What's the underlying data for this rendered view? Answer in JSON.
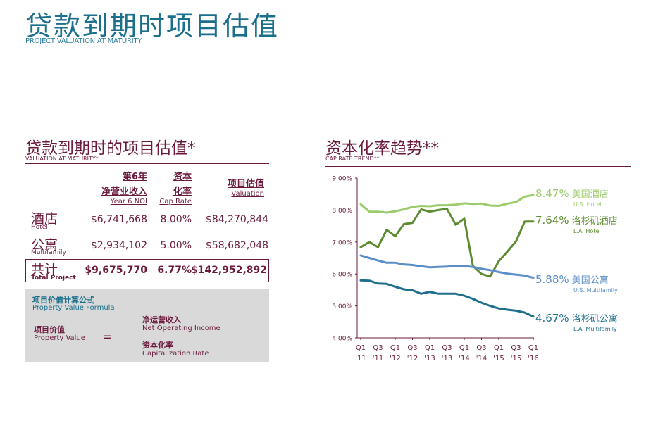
{
  "page": {
    "title": "贷款到期时项目估值",
    "subtitle": "PROJECT VALUATION AT MATURITY"
  },
  "valuation": {
    "title": "贷款到期时的项目估值*",
    "subtitle": "VALUATION AT MATURITY*",
    "headers": {
      "noi_cn_1": "第6年",
      "noi_cn_2": "净营业收入",
      "noi_en": "Year 6 NOI",
      "cap_cn_1": "资本",
      "cap_cn_2": "化率",
      "cap_en": "Cap Rate",
      "value_cn": "项目估值",
      "value_en": "Valuation"
    },
    "rows": [
      {
        "cn": "酒店",
        "en": "Hotel",
        "noi": "$6,741,668",
        "cap": "8.00%",
        "value": "$84,270,844"
      },
      {
        "cn": "公寓",
        "en": "Multifamily",
        "noi": "$2,934,102",
        "cap": "5.00%",
        "value": "$58,682,048"
      }
    ],
    "total": {
      "cn": "共计",
      "en": "Total Project",
      "noi": "$9,675,770",
      "cap": "6.77%",
      "value": "$142,952,892"
    }
  },
  "formula": {
    "title_cn": "项目价值计算公式",
    "title_en": "Property Value Formula",
    "left_cn": "项目价值",
    "left_en": "Property Value",
    "equals": "=",
    "num_cn": "净运营收入",
    "num_en": "Net Operating Income",
    "den_cn": "资本化率",
    "den_en": "Capitalization Rate"
  },
  "chart": {
    "title": "资本化率趋势**",
    "subtitle": "CAP RATE TREND**"
  },
  "chart_data": {
    "type": "line",
    "title": "资本化率趋势**",
    "subtitle": "CAP RATE TREND**",
    "xlabel": "",
    "ylabel": "",
    "ylim": [
      4.0,
      9.0
    ],
    "yticks": [
      "9.00%",
      "8.00%",
      "7.00%",
      "6.00%",
      "5.00%",
      "4.00%"
    ],
    "ytick_values": [
      9,
      8,
      7,
      6,
      5,
      4
    ],
    "xticks": [
      {
        "q": "Q1",
        "y": "'11"
      },
      {
        "q": "Q3",
        "y": "'11"
      },
      {
        "q": "Q1",
        "y": "'12"
      },
      {
        "q": "Q3",
        "y": "'12"
      },
      {
        "q": "Q1",
        "y": "'13"
      },
      {
        "q": "Q3",
        "y": "'13"
      },
      {
        "q": "Q1",
        "y": "'14"
      },
      {
        "q": "Q3",
        "y": "'14"
      },
      {
        "q": "Q1",
        "y": "'15"
      },
      {
        "q": "Q3",
        "y": "'15"
      },
      {
        "q": "Q1",
        "y": "'16"
      }
    ],
    "x": [
      "Q1 '11",
      "Q2 '11",
      "Q3 '11",
      "Q4 '11",
      "Q1 '12",
      "Q2 '12",
      "Q3 '12",
      "Q4 '12",
      "Q1 '13",
      "Q2 '13",
      "Q3 '13",
      "Q4 '13",
      "Q1 '14",
      "Q2 '14",
      "Q3 '14",
      "Q4 '14",
      "Q1 '15",
      "Q2 '15",
      "Q3 '15",
      "Q4 '15",
      "Q1 '16"
    ],
    "grid": false,
    "legend": "right",
    "series": [
      {
        "name": "美国酒店",
        "name_en": "U.S. Hotel",
        "end_label": "8.47%",
        "color": "#9ccb6b",
        "values": [
          8.18,
          7.95,
          7.95,
          7.92,
          7.96,
          8.02,
          8.1,
          8.13,
          8.12,
          8.15,
          8.15,
          8.17,
          8.21,
          8.19,
          8.2,
          8.14,
          8.13,
          8.2,
          8.25,
          8.42,
          8.47
        ]
      },
      {
        "name": "洛杉矶酒店",
        "name_en": "L.A. Hotel",
        "end_label": "7.64%",
        "color": "#5e8c31",
        "values": [
          6.84,
          7.0,
          6.84,
          7.38,
          7.18,
          7.56,
          7.6,
          8.02,
          7.95,
          8.0,
          8.04,
          7.54,
          7.73,
          6.25,
          6.0,
          5.92,
          6.4,
          6.7,
          7.02,
          7.64,
          7.64
        ]
      },
      {
        "name": "美国公寓",
        "name_en": "U.S. Multifamily",
        "end_label": "5.88%",
        "color": "#5b8ec9",
        "values": [
          6.58,
          6.5,
          6.42,
          6.35,
          6.35,
          6.3,
          6.28,
          6.24,
          6.21,
          6.22,
          6.23,
          6.25,
          6.25,
          6.22,
          6.16,
          6.12,
          6.06,
          6.01,
          5.98,
          5.95,
          5.88
        ]
      },
      {
        "name": "洛杉矶公寓",
        "name_en": "L.A. Multifamily",
        "end_label": "4.67%",
        "color": "#1f6e8c",
        "values": [
          5.8,
          5.79,
          5.7,
          5.69,
          5.6,
          5.52,
          5.49,
          5.38,
          5.44,
          5.38,
          5.38,
          5.38,
          5.32,
          5.22,
          5.1,
          5.0,
          4.92,
          4.88,
          4.85,
          4.79,
          4.67
        ]
      }
    ]
  }
}
